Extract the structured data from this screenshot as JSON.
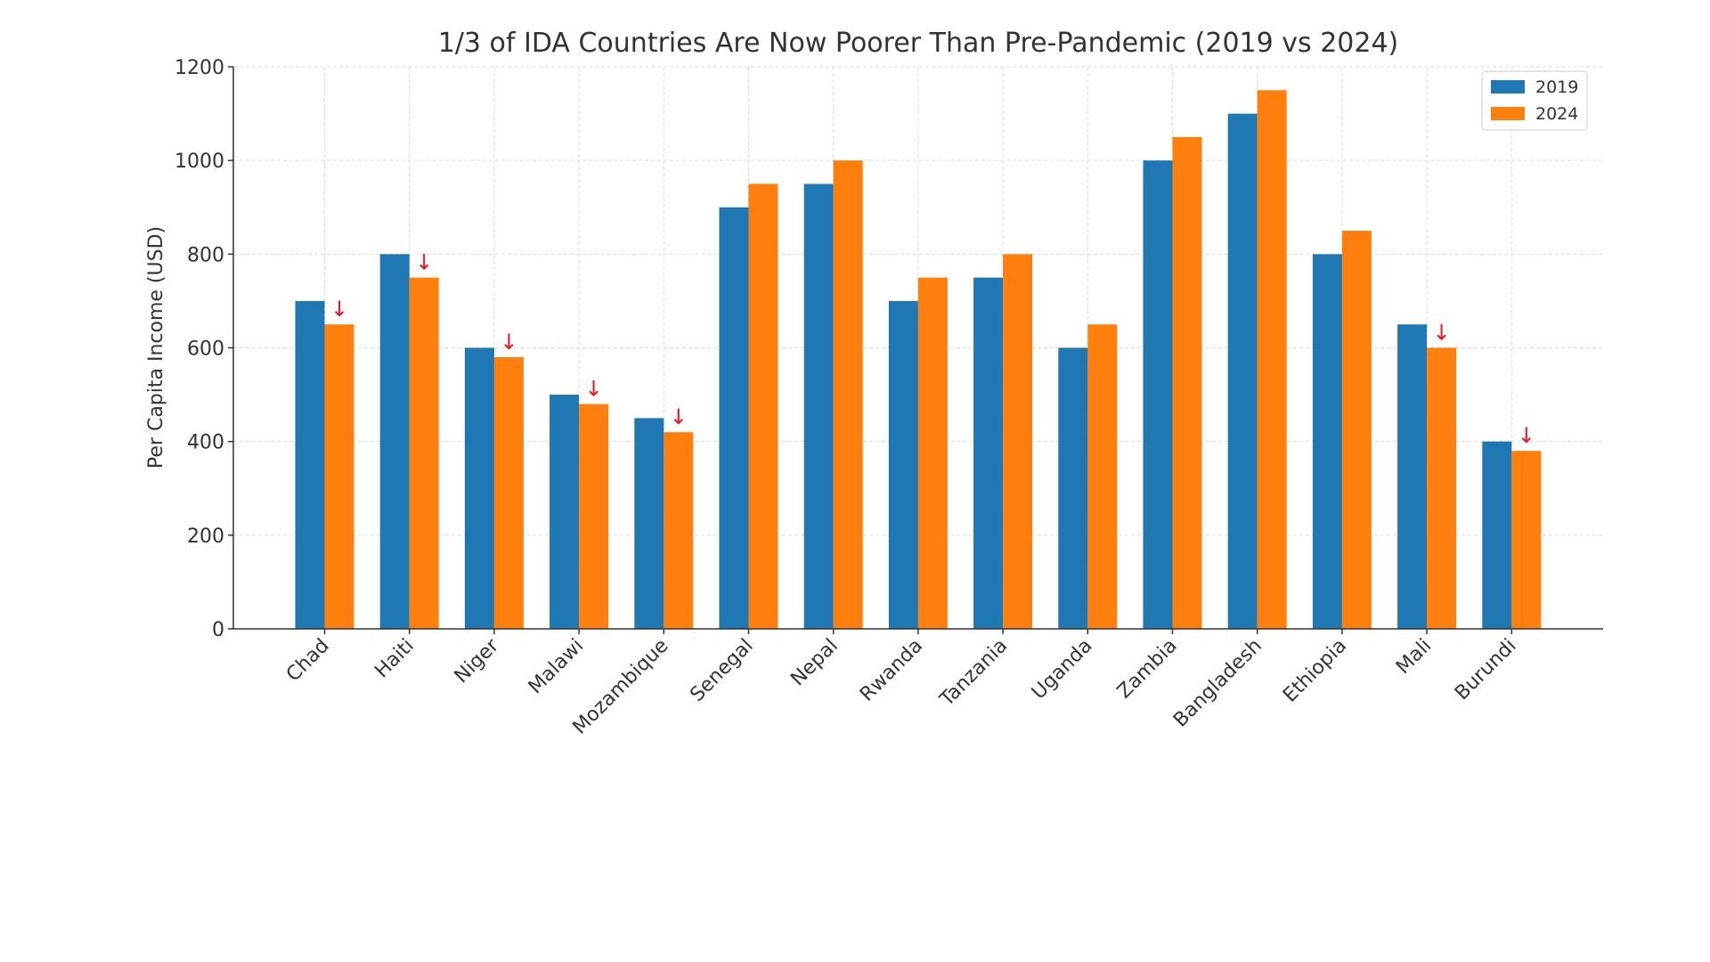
{
  "chart_data": {
    "type": "bar",
    "title": "1/3 of IDA Countries Are Now Poorer Than Pre-Pandemic (2019 vs 2024)",
    "xlabel": "",
    "ylabel": "Per Capita Income (USD)",
    "ylim": [
      0,
      1200
    ],
    "yticks": [
      0,
      200,
      400,
      600,
      800,
      1000,
      1200
    ],
    "ytick_labels": [
      "0",
      "200",
      "400",
      "600",
      "800",
      "1000",
      "1200"
    ],
    "grid": true,
    "legend_position": "top-right",
    "categories": [
      "Chad",
      "Haiti",
      "Niger",
      "Malawi",
      "Mozambique",
      "Senegal",
      "Nepal",
      "Rwanda",
      "Tanzania",
      "Uganda",
      "Zambia",
      "Bangladesh",
      "Ethiopia",
      "Mali",
      "Burundi"
    ],
    "series": [
      {
        "name": "2019",
        "color": "#1f77b4",
        "values": [
          700,
          800,
          600,
          500,
          450,
          900,
          950,
          700,
          750,
          600,
          1000,
          1100,
          800,
          650,
          400
        ]
      },
      {
        "name": "2024",
        "color": "#ff7f0e",
        "values": [
          650,
          750,
          580,
          480,
          420,
          950,
          1000,
          750,
          800,
          650,
          1050,
          1150,
          850,
          600,
          380
        ]
      }
    ],
    "annotations": {
      "symbol": "↓",
      "color": "#e8141e",
      "categories": [
        "Chad",
        "Haiti",
        "Niger",
        "Malawi",
        "Mozambique",
        "Mali",
        "Burundi"
      ]
    }
  }
}
